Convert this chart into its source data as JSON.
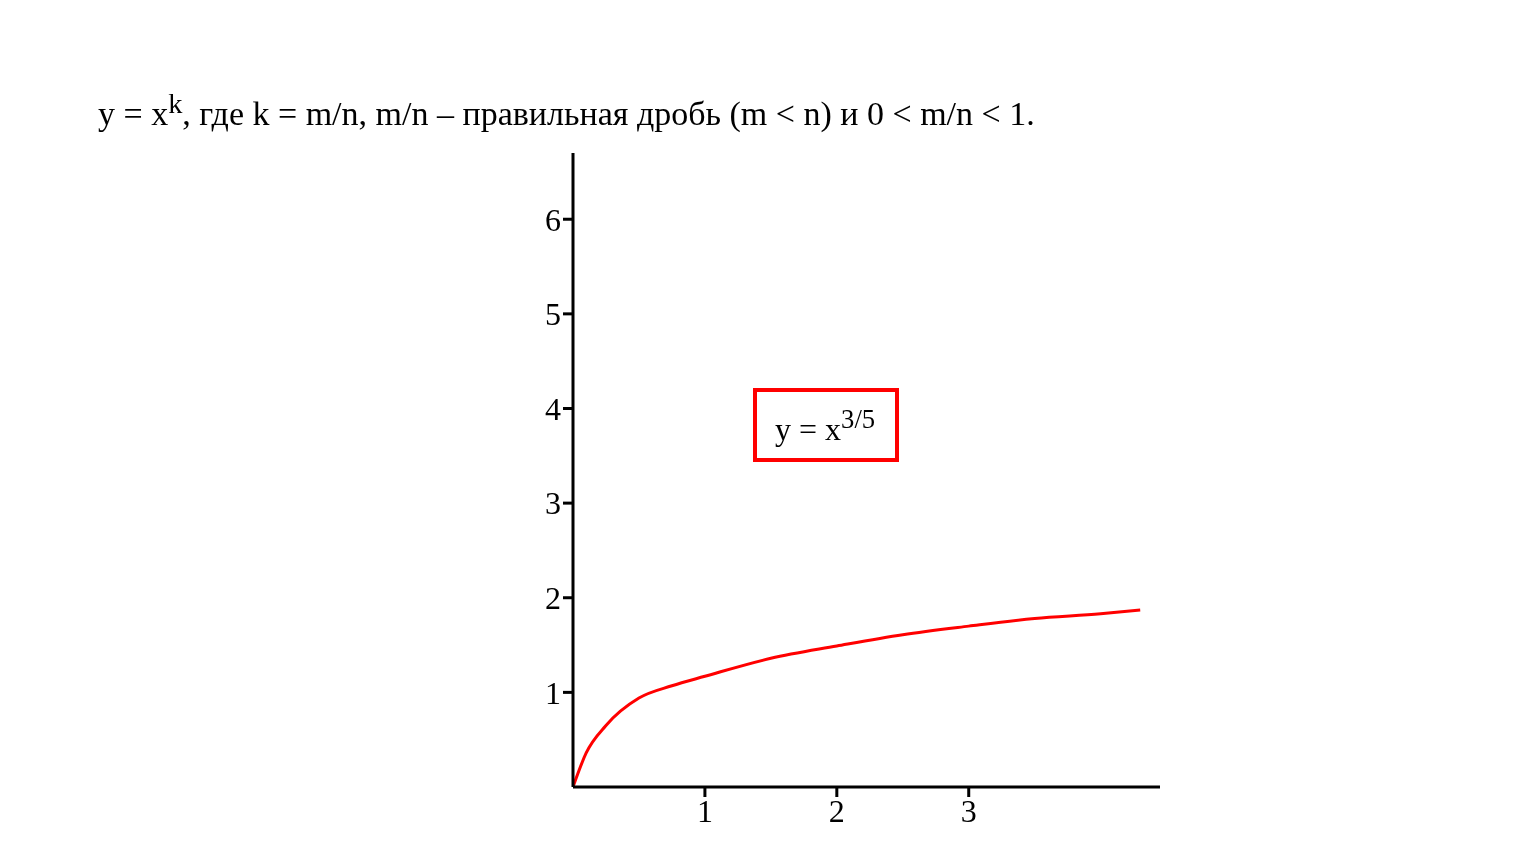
{
  "chart_data": {
    "type": "line",
    "title": "y = x$^{k}$, где k = m/n, m/n – правильная дробь (m < n) и 0 < m/n < 1.",
    "annotations": [
      "y = x$^{3/5}$"
    ],
    "x": [
      0,
      0.1,
      0.25,
      0.5,
      0.75,
      1,
      1.5,
      2,
      2.5,
      3,
      3.5,
      4,
      4.3
    ],
    "series": [
      {
        "color": "#ff0000",
        "values": [
          0,
          0.36,
          0.65,
          0.94,
          1.07,
          1.17,
          1.36,
          1.49,
          1.61,
          1.7,
          1.78,
          1.83,
          1.87
        ]
      }
    ],
    "xlim": [
      0,
      4.45
    ],
    "xticks": [
      1,
      2,
      3
    ],
    "ylim": [
      0,
      6.7
    ],
    "yticks": [
      1,
      2,
      3,
      4,
      5,
      6
    ],
    "marker": "none"
  }
}
